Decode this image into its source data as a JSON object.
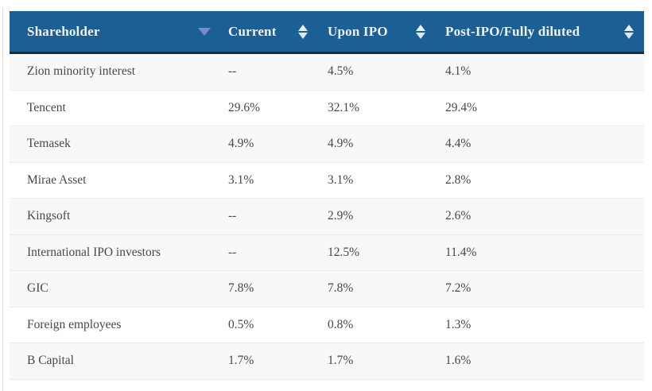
{
  "table": {
    "columns": [
      {
        "label": "Shareholder",
        "sort_state": "sorted-desc"
      },
      {
        "label": "Current",
        "sort_state": "sortable"
      },
      {
        "label": "Upon IPO",
        "sort_state": "sortable"
      },
      {
        "label": "Post-IPO/Fully diluted",
        "sort_state": "sortable"
      }
    ],
    "rows": [
      {
        "shareholder": "Zion minority interest",
        "current": "--",
        "upon_ipo": "4.5%",
        "post_ipo": "4.1%",
        "shaded": true
      },
      {
        "shareholder": "Tencent",
        "current": "29.6%",
        "upon_ipo": "32.1%",
        "post_ipo": "29.4%",
        "shaded": false
      },
      {
        "shareholder": "Temasek",
        "current": "4.9%",
        "upon_ipo": "4.9%",
        "post_ipo": "4.4%",
        "shaded": true
      },
      {
        "shareholder": "Mirae Asset",
        "current": "3.1%",
        "upon_ipo": "3.1%",
        "post_ipo": "2.8%",
        "shaded": false
      },
      {
        "shareholder": "Kingsoft",
        "current": "--",
        "upon_ipo": "2.9%",
        "post_ipo": "2.6%",
        "shaded": true
      },
      {
        "shareholder": "International IPO investors",
        "current": "--",
        "upon_ipo": "12.5%",
        "post_ipo": "11.4%",
        "shaded": true
      },
      {
        "shareholder": "GIC",
        "current": "7.8%",
        "upon_ipo": "7.8%",
        "post_ipo": "7.2%",
        "shaded": true
      },
      {
        "shareholder": "Foreign employees",
        "current": "0.5%",
        "upon_ipo": "0.8%",
        "post_ipo": "1.3%",
        "shaded": false
      },
      {
        "shareholder": "B Capital",
        "current": "1.7%",
        "upon_ipo": "1.7%",
        "post_ipo": "1.6%",
        "shaded": true
      }
    ]
  },
  "colors": {
    "header_bg": "#1a6095",
    "header_text": "#edf3f8",
    "header_bottom_border": "#1c2a35",
    "sorted_arrow_accent": "#7e88cf",
    "sortable_arrow": "#eaeff3",
    "row_shaded_bg": "#f7f8f8",
    "row_divider": "#e9ebec",
    "body_text": "#45484d"
  }
}
